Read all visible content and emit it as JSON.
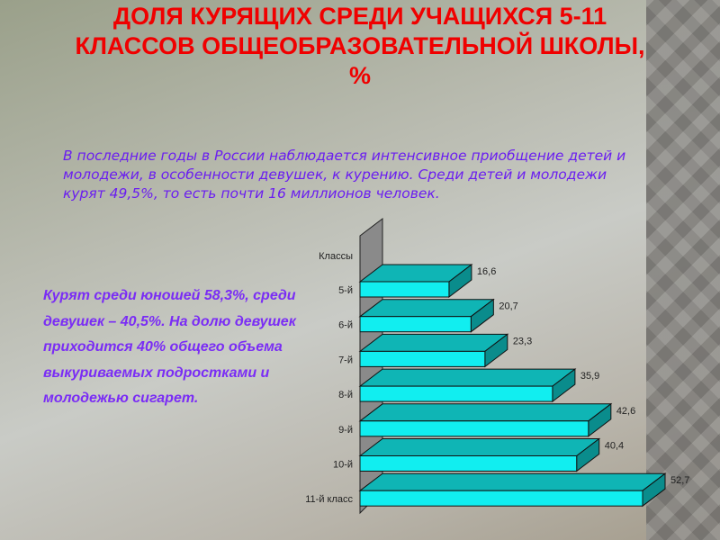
{
  "slide": {
    "title_lines": [
      "ДОЛЯ КУРЯЩИХ СРЕДИ УЧАЩИХСЯ 5-11",
      "КЛАССОВ ОБЩЕОБРАЗОВАТЕЛЬНОЙ ШКОЛЫ,",
      "%"
    ],
    "intro_text": "В последние годы в России наблюдается интенсивное приобщение детей и молодежи, в особенности девушек, к курению. Среди детей и молодежи курят 49,5%, то есть почти 16 миллионов человек.",
    "side_text": "Курят среди юношей 58,3%, среди девушек – 40,5%. На долю девушек приходится 40% общего объема выкуриваемых подростками и молодежью сигарет."
  },
  "chart_data": {
    "type": "bar",
    "orientation": "horizontal",
    "style": "3d",
    "title": "",
    "axis_label": "Классы",
    "categories": [
      "5-й",
      "6-й",
      "7-й",
      "8-й",
      "9-й",
      "10-й",
      "11-й класс"
    ],
    "values": [
      16.6,
      20.7,
      23.3,
      35.9,
      42.6,
      40.4,
      52.7
    ],
    "value_labels": [
      "16,6",
      "20,7",
      "23,3",
      "35,9",
      "42,6",
      "40,4",
      "52,7"
    ],
    "xlim": [
      0,
      52.7
    ],
    "grid": false,
    "colors": {
      "bar_front": "#11eef0",
      "bar_top": "#0fb5b5",
      "bar_side": "#0a8c8c",
      "wall": "#8a8a8a"
    }
  }
}
